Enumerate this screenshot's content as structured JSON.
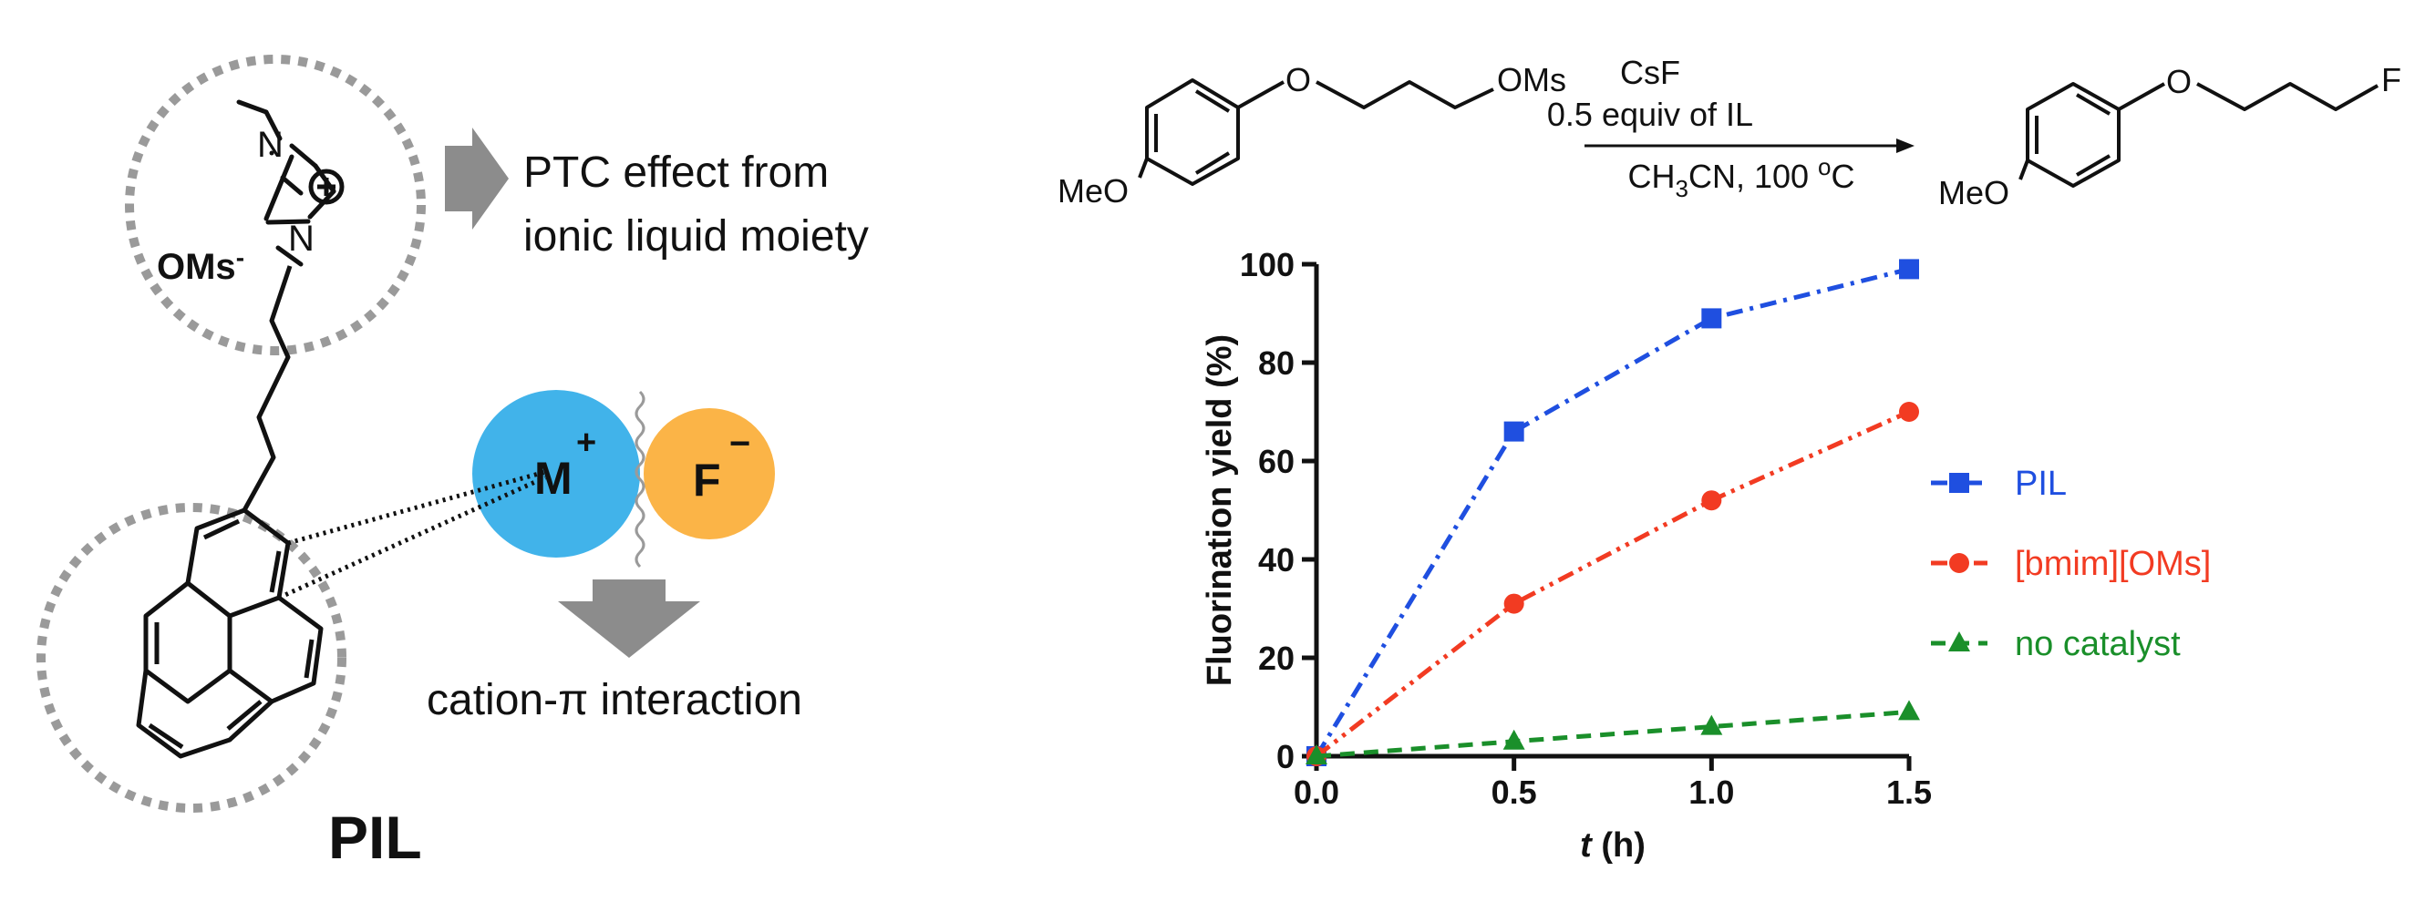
{
  "left_panel": {
    "counter_anion": "OMs",
    "counter_anion_sup": "-",
    "nitrogen": "N",
    "ptc_line1": "PTC effect from",
    "ptc_line2": "ionic liquid moiety",
    "metal": "M",
    "metal_charge": "+",
    "fluoride": "F",
    "fluoride_charge": "−",
    "interaction": "cation-π interaction",
    "compound_label": "PIL"
  },
  "scheme": {
    "reactant_leaving": "OMs",
    "ether_o": "O",
    "meo": "MeO",
    "reagent": "CsF",
    "conditions1": "0.5 equiv of IL",
    "solvent_main": "CH",
    "solvent_sub": "3",
    "solvent_rest": "CN, 100 ",
    "temp_sup": "o",
    "temp_unit": "C",
    "product_end": "F"
  },
  "chart_data": {
    "type": "line",
    "title": "",
    "xlabel_italic": "t",
    "xlabel": " (h)",
    "ylabel": "Fluorination yield (%)",
    "xlim": [
      0,
      1.5
    ],
    "ylim": [
      0,
      100
    ],
    "x_ticks": [
      "0.0",
      "0.5",
      "1.0",
      "1.5"
    ],
    "x_tick_values": [
      0,
      0.5,
      1.0,
      1.5
    ],
    "y_ticks": [
      "0",
      "20",
      "40",
      "60",
      "80",
      "100"
    ],
    "y_tick_values": [
      0,
      20,
      40,
      60,
      80,
      100
    ],
    "x": [
      0,
      0.5,
      1.0,
      1.5
    ],
    "series": [
      {
        "name": "PIL",
        "values": [
          0,
          66,
          89,
          99
        ],
        "color": "#1f4fe0",
        "marker": "square",
        "dash": "dash-dot"
      },
      {
        "name": "[bmim][OMs]",
        "values": [
          0,
          31,
          52,
          70
        ],
        "color": "#f23b22",
        "marker": "circle",
        "dash": "dash-dot-dot"
      },
      {
        "name": "no catalyst",
        "values": [
          0,
          3,
          6,
          9
        ],
        "color": "#1a8f2a",
        "marker": "triangle",
        "dash": "dash"
      }
    ],
    "legend_position": "right"
  }
}
